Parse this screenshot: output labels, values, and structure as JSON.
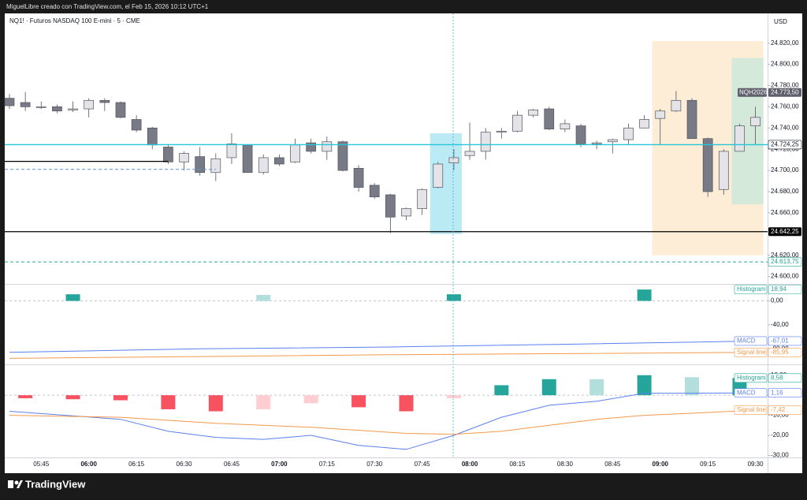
{
  "header": "MiguelLibre creado con TradingView.com, el Feb 15, 2026 10:12 UTC+1",
  "brand": "TradingView",
  "chart_data": [
    {
      "type": "candlestick",
      "title": "NQ1! · Futuros NASDAQ 100 E-mini · 5 · CME",
      "currency": "USD",
      "x": [
        "05:35",
        "05:40",
        "05:45",
        "05:50",
        "05:55",
        "06:00",
        "06:05",
        "06:10",
        "06:15",
        "06:20",
        "06:25",
        "06:30",
        "06:35",
        "06:40",
        "06:45",
        "06:50",
        "06:55",
        "07:00",
        "07:05",
        "07:10",
        "07:15",
        "07:20",
        "07:25",
        "07:30",
        "07:35",
        "07:40",
        "07:45",
        "07:50",
        "07:55",
        "08:00",
        "08:05",
        "08:10",
        "08:15",
        "08:20",
        "08:25",
        "08:30",
        "08:35",
        "08:40",
        "08:45",
        "08:50",
        "08:55",
        "09:00",
        "09:05",
        "09:10",
        "09:15",
        "09:20",
        "09:25",
        "09:30"
      ],
      "open": [
        24768,
        24764,
        24760,
        24760,
        24757,
        24758,
        24766,
        24764,
        24748,
        24740,
        24722,
        24708,
        24713,
        24698,
        24712,
        24724,
        24698,
        24712,
        24708,
        24726,
        24718,
        24727,
        24702,
        24686,
        24677,
        24657,
        24664,
        24684,
        24707,
        24714,
        24718,
        24736,
        24737,
        24752,
        24758,
        24739,
        24742,
        24725,
        24727,
        24729,
        24740,
        24749,
        24756,
        24766,
        24730,
        24682,
        24718,
        24742
      ],
      "high": [
        24772,
        24774,
        24765,
        24762,
        24765,
        24768,
        24768,
        24765,
        24752,
        24741,
        24725,
        24718,
        24722,
        24716,
        24735,
        24725,
        24715,
        24715,
        24730,
        24730,
        24732,
        24728,
        24705,
        24688,
        24678,
        24665,
        24683,
        24708,
        24720,
        24745,
        24740,
        24740,
        24756,
        24758,
        24760,
        24748,
        24744,
        24728,
        24730,
        24744,
        24752,
        24758,
        24775,
        24768,
        24731,
        24720,
        24744,
        24760
      ],
      "low": [
        24758,
        24756,
        24758,
        24754,
        24755,
        24750,
        24756,
        24749,
        24736,
        24720,
        24706,
        24700,
        24695,
        24690,
        24706,
        24698,
        24696,
        24704,
        24707,
        24716,
        24710,
        24699,
        24680,
        24673,
        24641,
        24653,
        24658,
        24683,
        24700,
        24710,
        24710,
        24730,
        24736,
        24750,
        24738,
        24736,
        24722,
        24720,
        24716,
        24724,
        24740,
        24724,
        24755,
        24730,
        24675,
        24677,
        24718,
        24724
      ],
      "close": [
        24761,
        24760,
        24760,
        24756,
        24758,
        24766,
        24764,
        24750,
        24738,
        24724,
        24708,
        24716,
        24698,
        24711,
        24725,
        24698,
        24712,
        24706,
        24724,
        24718,
        24727,
        24700,
        24684,
        24675,
        24656,
        24664,
        24682,
        24706,
        24712,
        24718,
        24736,
        24737,
        24752,
        24757,
        24739,
        24744,
        24725,
        24726,
        24729,
        24740,
        24748,
        24756,
        24766,
        24730,
        24680,
        24718,
        24742,
        24750
      ],
      "up_color": "#e4e4e8",
      "down_color": "#787b86",
      "outline_color": "#50535e",
      "ylim": [
        24593,
        24848
      ],
      "yticks": [
        {
          "value": 24820,
          "label": "24.820,00"
        },
        {
          "value": 24800,
          "label": "24.800,00"
        },
        {
          "value": 24780,
          "label": "24.780,00"
        },
        {
          "value": 24760,
          "label": "24.760,00"
        },
        {
          "value": 24740,
          "label": "24.740,00"
        },
        {
          "value": 24720,
          "label": "24.720,00"
        },
        {
          "value": 24700,
          "label": "24.700,00"
        },
        {
          "value": 24680,
          "label": "24.680,00"
        },
        {
          "value": 24660,
          "label": "24.660,00"
        },
        {
          "value": 24620,
          "label": "24.620,00"
        },
        {
          "value": 24600,
          "label": "24.600,00"
        }
      ],
      "xticks": [
        "05:45",
        "06:00",
        "06:15",
        "06:30",
        "06:45",
        "07:00",
        "07:15",
        "07:30",
        "07:45",
        "08:00",
        "08:15",
        "08:30",
        "08:45",
        "09:00",
        "09:15",
        "09:30"
      ],
      "levels": [
        {
          "value": 24724.25,
          "label": "24.724,25",
          "color": "#26c6da",
          "style": "solid"
        },
        {
          "value": 24642.25,
          "label": "24.642,25",
          "color": "#000000",
          "style": "solid"
        },
        {
          "value": 24613.75,
          "label": "24.613,75",
          "color": "#26a69a",
          "style": "dashed"
        },
        {
          "value": 24708.5,
          "color": "#000000",
          "style": "solid",
          "to": "06:25"
        },
        {
          "value": 24701,
          "color": "#5b8fd8",
          "style": "dashed",
          "to": "06:40"
        }
      ],
      "zones": [
        {
          "from": "07:50",
          "to": "07:55",
          "top": 24735,
          "bottom": 24640,
          "color": "#b3e8f2"
        },
        {
          "from": "09:00",
          "to": "09:30",
          "top": 24822,
          "bottom": 24620,
          "color": "#fdebd3"
        },
        {
          "from": "09:25",
          "to": "09:30",
          "top": 24806,
          "bottom": 24668,
          "color": "#cfe8da"
        }
      ],
      "last_price": {
        "name": "NQH2026",
        "value": 24773.5,
        "label": "24.773,50"
      }
    },
    {
      "type": "macd",
      "ylim": [
        -106,
        27
      ],
      "yticks": [
        {
          "value": 0,
          "label": "0,00"
        },
        {
          "value": -40,
          "label": "-40,00"
        },
        {
          "value": -80,
          "label": "-80,00"
        }
      ],
      "series": [
        {
          "name": "Histogram",
          "type": "histogram",
          "color": "#26a69a",
          "x": [
            "05:55",
            "06:55",
            "07:55",
            "08:55"
          ],
          "values": [
            11,
            10,
            11,
            18.94
          ],
          "colors": [
            "#26a69a",
            "#b2dfdb",
            "#26a69a",
            "#26a69a"
          ],
          "last_label": "18,94"
        },
        {
          "name": "MACD",
          "type": "line",
          "color": "#5b7ff0",
          "x": [
            "05:35",
            "06:35",
            "07:35",
            "08:35",
            "09:30"
          ],
          "values": [
            -86,
            -80,
            -77,
            -72,
            -67.01
          ],
          "last_label": "-67,01"
        },
        {
          "name": "Signal line",
          "type": "line",
          "color": "#f39a4a",
          "x": [
            "05:35",
            "06:35",
            "07:35",
            "08:35",
            "09:30"
          ],
          "values": [
            -96,
            -93,
            -90,
            -88,
            -85.95
          ],
          "last_label": "-85,95"
        }
      ]
    },
    {
      "type": "macd",
      "ylim": [
        -31,
        15
      ],
      "yticks": [
        {
          "value": 10,
          "label": "10,00"
        },
        {
          "value": 0,
          "label": "0,00"
        },
        {
          "value": -10,
          "label": "-10,00"
        },
        {
          "value": -20,
          "label": "-20,00"
        },
        {
          "value": -30,
          "label": "-30,00"
        }
      ],
      "series": [
        {
          "name": "Histogram",
          "type": "histogram",
          "color": "#26a69a",
          "x": [
            "05:40",
            "05:55",
            "06:10",
            "06:25",
            "06:40",
            "06:55",
            "07:10",
            "07:25",
            "07:40",
            "07:55",
            "08:10",
            "08:25",
            "08:40",
            "08:55",
            "09:10",
            "09:25"
          ],
          "values": [
            -1.5,
            -2,
            -2.5,
            -7,
            -8,
            -7,
            -4,
            -6,
            -8,
            -1.5,
            5,
            8,
            8,
            10,
            9,
            8.58
          ],
          "colors": [
            "#f7525f",
            "#f7525f",
            "#f7525f",
            "#f7525f",
            "#f7525f",
            "#ffcdd2",
            "#ffcdd2",
            "#f7525f",
            "#f7525f",
            "#ffcdd2",
            "#26a69a",
            "#26a69a",
            "#b2dfdb",
            "#26a69a",
            "#b2dfdb",
            "#26a69a"
          ],
          "last_label": "8,58"
        },
        {
          "name": "MACD",
          "type": "line",
          "color": "#5b7ff0",
          "x": [
            "05:35",
            "06:10",
            "06:25",
            "06:40",
            "06:55",
            "07:10",
            "07:25",
            "07:40",
            "07:55",
            "08:10",
            "08:25",
            "08:40",
            "08:55",
            "09:10",
            "09:30"
          ],
          "values": [
            -8,
            -12,
            -18,
            -21,
            -22,
            -20,
            -25,
            -27,
            -20,
            -11,
            -5,
            -3,
            1,
            1,
            1.16
          ],
          "last_label": "1,16"
        },
        {
          "name": "Signal line",
          "type": "line",
          "color": "#f39a4a",
          "x": [
            "05:35",
            "06:10",
            "06:40",
            "07:10",
            "07:40",
            "07:55",
            "08:10",
            "08:25",
            "08:40",
            "08:55",
            "09:10",
            "09:30"
          ],
          "values": [
            -10,
            -11,
            -14,
            -16,
            -19,
            -19.5,
            -18,
            -15,
            -12,
            -10,
            -9,
            -7.42
          ],
          "last_label": "-7,42"
        }
      ]
    }
  ]
}
